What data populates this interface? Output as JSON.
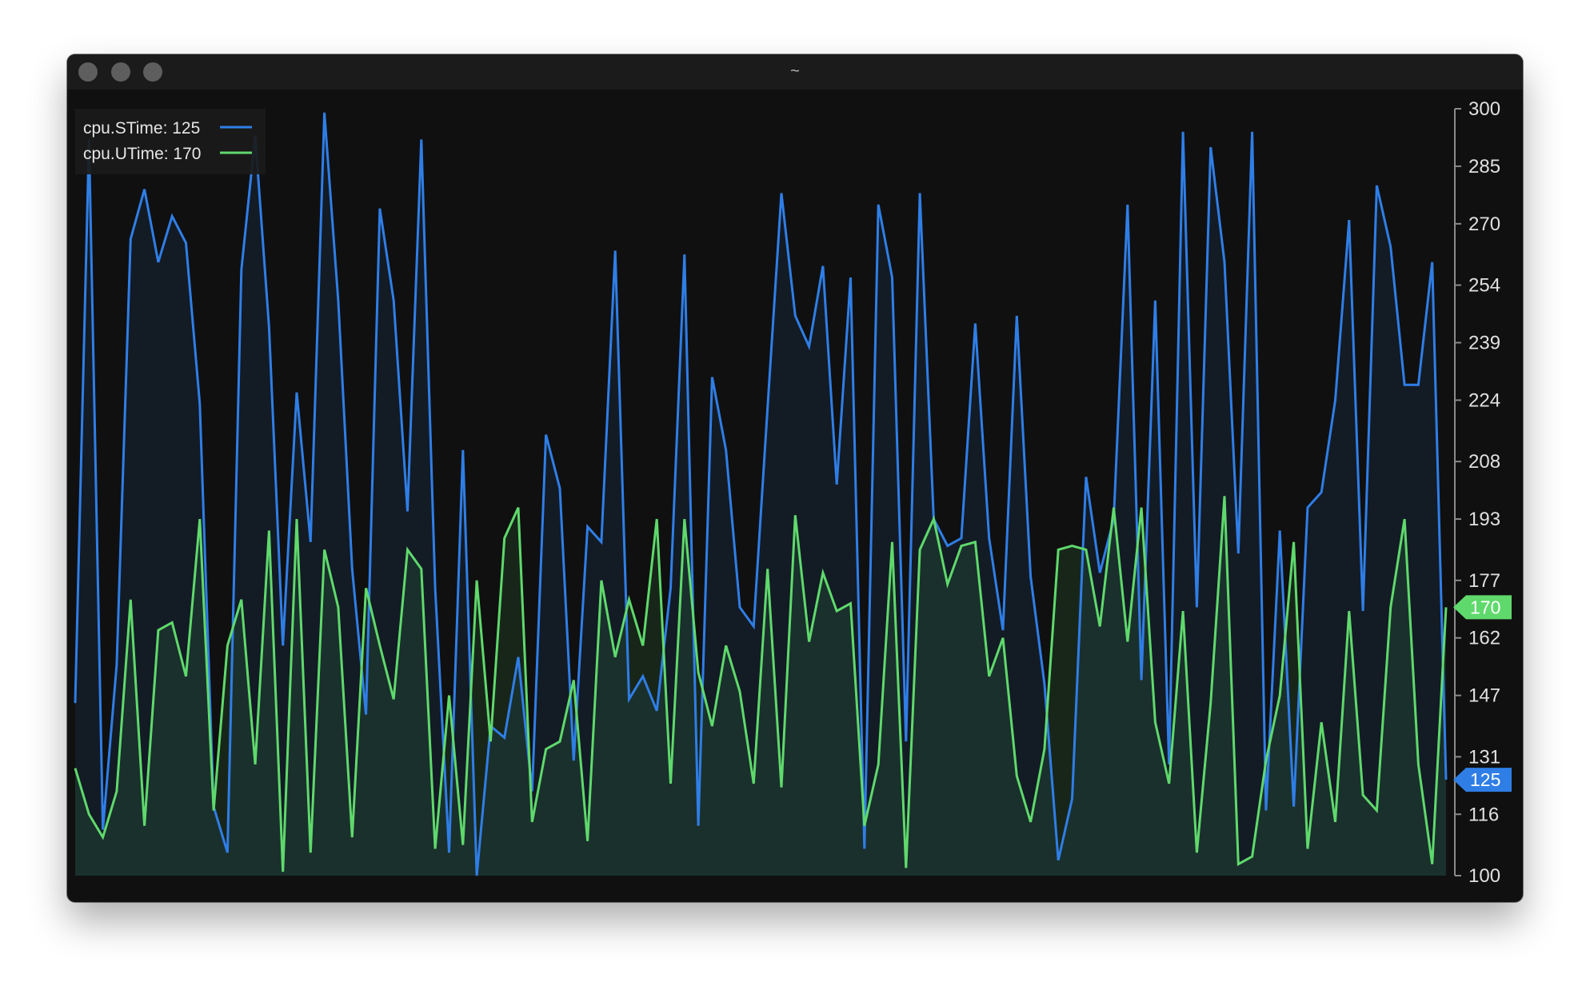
{
  "window": {
    "title": "~"
  },
  "icons": {
    "traffic_lights": [
      "close-button",
      "minimize-button",
      "zoom-button"
    ]
  },
  "colors": {
    "background": "#101010",
    "stime": "#2f7ee6",
    "utime": "#5fd96c"
  },
  "chart_data": {
    "type": "line",
    "ylim": [
      100,
      300
    ],
    "y_ticks": [
      "300",
      "285",
      "270",
      "254",
      "239",
      "224",
      "208",
      "193",
      "177",
      "162",
      "147",
      "131",
      "116",
      "100"
    ],
    "grid": false,
    "legend_position": "top-left",
    "axis_position": "right",
    "legend": [
      "cpu.STime: 125",
      "cpu.UTime: 170"
    ],
    "current_tags": [
      "170",
      "125"
    ],
    "series": [
      {
        "name": "cpu.STime",
        "color": "#2f7ee6",
        "current": 125,
        "values": [
          145,
          292,
          112,
          155,
          266,
          279,
          260,
          272,
          265,
          223,
          118,
          106,
          258,
          293,
          243,
          160,
          226,
          187,
          299,
          250,
          180,
          142,
          274,
          250,
          195,
          292,
          175,
          106,
          211,
          100,
          139,
          136,
          157,
          122,
          215,
          201,
          130,
          191,
          187,
          263,
          146,
          152,
          143,
          175,
          262,
          113,
          230,
          211,
          170,
          165,
          222,
          278,
          246,
          238,
          259,
          202,
          256,
          107,
          275,
          256,
          135,
          278,
          193,
          186,
          188,
          244,
          188,
          164,
          246,
          178,
          150,
          104,
          120,
          204,
          179,
          193,
          275,
          151,
          250,
          129,
          294,
          170,
          290,
          260,
          184,
          294,
          117,
          190,
          118,
          196,
          200,
          224,
          271,
          169,
          280,
          264,
          228,
          228,
          260,
          125
        ]
      },
      {
        "name": "cpu.UTime",
        "color": "#5fd96c",
        "current": 170,
        "values": [
          128,
          116,
          110,
          122,
          172,
          113,
          164,
          166,
          152,
          193,
          117,
          160,
          172,
          129,
          190,
          101,
          193,
          106,
          185,
          170,
          110,
          175,
          160,
          146,
          185,
          180,
          107,
          147,
          108,
          177,
          135,
          188,
          196,
          114,
          133,
          135,
          151,
          109,
          177,
          157,
          172,
          160,
          193,
          124,
          193,
          153,
          139,
          160,
          148,
          124,
          180,
          123,
          194,
          161,
          179,
          169,
          171,
          113,
          129,
          187,
          102,
          185,
          193,
          176,
          186,
          187,
          152,
          162,
          126,
          114,
          133,
          185,
          186,
          185,
          165,
          196,
          161,
          196,
          140,
          124,
          169,
          106,
          145,
          199,
          103,
          105,
          130,
          147,
          187,
          107,
          140,
          114,
          169,
          121,
          117,
          170,
          193,
          129,
          103,
          170
        ]
      }
    ]
  }
}
